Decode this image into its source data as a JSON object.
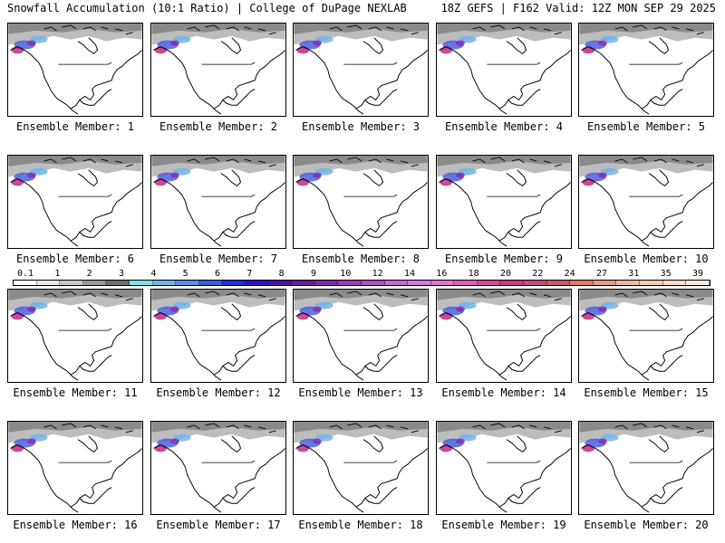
{
  "header": {
    "left": "Snowfall Accumulation (10:1 Ratio) | College of DuPage NEXLAB",
    "right": "18Z GEFS | F162 Valid: 12Z MON SEP 29 2025"
  },
  "panels": [
    {
      "label": "Ensemble Member: 1"
    },
    {
      "label": "Ensemble Member: 2"
    },
    {
      "label": "Ensemble Member: 3"
    },
    {
      "label": "Ensemble Member: 4"
    },
    {
      "label": "Ensemble Member: 5"
    },
    {
      "label": "Ensemble Member: 6"
    },
    {
      "label": "Ensemble Member: 7"
    },
    {
      "label": "Ensemble Member: 8"
    },
    {
      "label": "Ensemble Member: 9"
    },
    {
      "label": "Ensemble Member: 10"
    },
    {
      "label": "Ensemble Member: 11"
    },
    {
      "label": "Ensemble Member: 12"
    },
    {
      "label": "Ensemble Member: 13"
    },
    {
      "label": "Ensemble Member: 14"
    },
    {
      "label": "Ensemble Member: 15"
    },
    {
      "label": "Ensemble Member: 16"
    },
    {
      "label": "Ensemble Member: 17"
    },
    {
      "label": "Ensemble Member: 18"
    },
    {
      "label": "Ensemble Member: 19"
    },
    {
      "label": "Ensemble Member: 20"
    }
  ],
  "legend": {
    "labels": [
      "0.1",
      "1",
      "2",
      "3",
      "4",
      "5",
      "6",
      "7",
      "8",
      "9",
      "10",
      "12",
      "14",
      "16",
      "18",
      "20",
      "22",
      "24",
      "27",
      "31",
      "35",
      "39"
    ],
    "colors": [
      "#ffffff",
      "#e8e8e8",
      "#c8c8c8",
      "#9a9a9a",
      "#6e6e6e",
      "#7fe0e8",
      "#6fb4ec",
      "#5a8ee8",
      "#3a5ee0",
      "#1e2ee8",
      "#2a14c8",
      "#4a14a8",
      "#6a1c98",
      "#7e2aa8",
      "#9a3cb8",
      "#b04ec8",
      "#c866d8",
      "#d47ae0",
      "#e078c8",
      "#e060b0",
      "#d84898",
      "#c83c80",
      "#c84a78",
      "#d05a6e",
      "#e07a6a",
      "#e89a84",
      "#f0b69c",
      "#f6ccb4",
      "#f8dcc4",
      "#faead6"
    ]
  }
}
